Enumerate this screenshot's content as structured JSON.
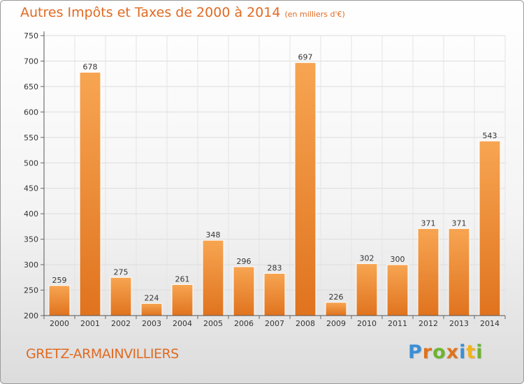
{
  "chart_data": {
    "type": "bar",
    "title": "Autres Impôts et Taxes de 2000 à 2014",
    "subtitle": "(en milliers d'€)",
    "categories": [
      "2000",
      "2001",
      "2002",
      "2003",
      "2004",
      "2005",
      "2006",
      "2007",
      "2008",
      "2009",
      "2010",
      "2011",
      "2012",
      "2013",
      "2014"
    ],
    "values": [
      259,
      678,
      275,
      224,
      261,
      348,
      296,
      283,
      697,
      226,
      302,
      300,
      371,
      371,
      543
    ],
    "ylim": [
      200,
      750
    ],
    "yticks": [
      200,
      250,
      300,
      350,
      400,
      450,
      500,
      550,
      600,
      650,
      700,
      750
    ],
    "grid": true,
    "bar_color_top": "#f7a552",
    "bar_color_bottom": "#e0731e"
  },
  "footer": {
    "commune": "GRETZ-ARMAINVILLIERS",
    "logo_letters": [
      "P",
      "r",
      "o",
      "x",
      "i",
      "t",
      "i"
    ],
    "logo_colors": [
      "#3a8fd6",
      "#e0731e",
      "#6bb52f",
      "#e0731e",
      "#3a8fd6",
      "#f2b31b",
      "#6bb52f"
    ]
  }
}
